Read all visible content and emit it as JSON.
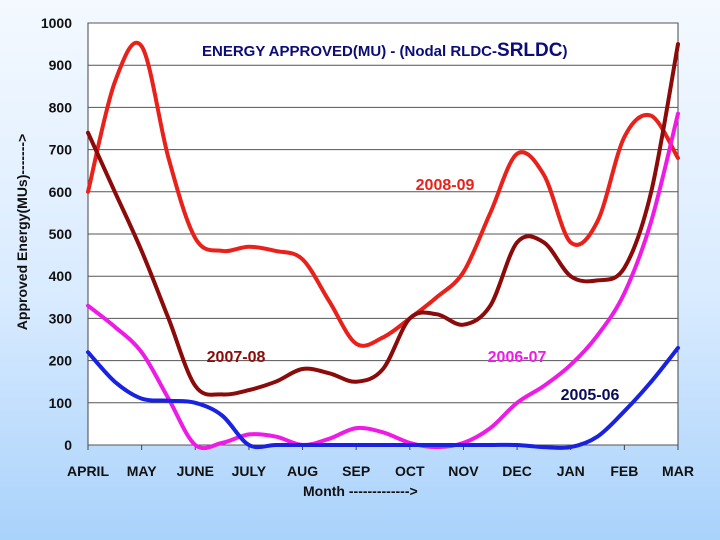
{
  "chart_data": {
    "type": "line",
    "title_prefix": "ENERGY APPROVED(MU) - (Nodal RLDC-",
    "title_suffix": "SRLDC",
    "title_close": ")",
    "xlabel": "Month ------------->",
    "ylabel": "Approved Energy(MUs)------->",
    "ylim": [
      0,
      1000
    ],
    "yticks": [
      0,
      100,
      200,
      300,
      400,
      500,
      600,
      700,
      800,
      900,
      1000
    ],
    "categories": [
      "APRIL",
      "MAY",
      "JUNE",
      "JULY",
      "AUG",
      "SEP",
      "OCT",
      "NOV",
      "DEC",
      "JAN",
      "FEB",
      "MAR"
    ],
    "series": [
      {
        "name": "2008-09",
        "color": "#e8211b",
        "x": [
          0,
          0.5,
          1.0,
          1.5,
          2.0,
          2.5,
          3.0,
          3.5,
          4.0,
          4.5,
          5.0,
          5.5,
          6.0,
          6.5,
          7.0,
          7.5,
          8.0,
          8.5,
          9.0,
          9.5,
          10.0,
          10.5,
          11.0
        ],
        "values": [
          600,
          860,
          945,
          680,
          490,
          460,
          470,
          460,
          440,
          340,
          240,
          255,
          300,
          350,
          410,
          550,
          690,
          640,
          480,
          530,
          730,
          780,
          680
        ]
      },
      {
        "name": "2007-08",
        "color": "#8b0a0a",
        "x": [
          0,
          0.5,
          1.0,
          1.5,
          2.0,
          2.5,
          3.0,
          3.5,
          4.0,
          4.5,
          5.0,
          5.5,
          6.0,
          6.5,
          7.0,
          7.5,
          8.0,
          8.5,
          9.0,
          9.5,
          10.0,
          10.5,
          11.0
        ],
        "values": [
          740,
          600,
          460,
          300,
          140,
          120,
          130,
          150,
          180,
          170,
          150,
          180,
          300,
          310,
          285,
          330,
          480,
          480,
          400,
          390,
          420,
          600,
          950
        ]
      },
      {
        "name": "2006-07",
        "color": "#ee1be6",
        "x": [
          0,
          0.5,
          1.0,
          1.5,
          2.0,
          2.5,
          3.0,
          3.5,
          4.0,
          4.5,
          5.0,
          5.5,
          6.0,
          6.5,
          7.0,
          7.5,
          8.0,
          8.5,
          9.0,
          9.5,
          10.0,
          10.5,
          11.0
        ],
        "values": [
          330,
          280,
          220,
          110,
          0,
          5,
          25,
          20,
          0,
          15,
          40,
          30,
          5,
          -5,
          5,
          40,
          100,
          140,
          190,
          260,
          360,
          530,
          785
        ]
      },
      {
        "name": "2005-06",
        "color": "#1922e0",
        "x": [
          0,
          0.5,
          1.0,
          1.5,
          2.0,
          2.5,
          3.0,
          3.5,
          4.0,
          4.5,
          5.0,
          5.5,
          6.0,
          6.5,
          7.0,
          7.5,
          8.0,
          8.5,
          9.0,
          9.5,
          10.0,
          10.5,
          11.0
        ],
        "values": [
          220,
          150,
          110,
          105,
          100,
          70,
          0,
          0,
          0,
          0,
          0,
          0,
          0,
          0,
          0,
          0,
          0,
          -5,
          -5,
          20,
          80,
          150,
          230
        ]
      }
    ]
  }
}
